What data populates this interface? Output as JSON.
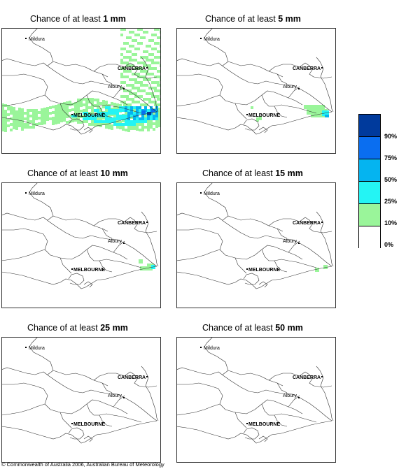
{
  "panels": [
    {
      "title_prefix": "Chance of at least ",
      "threshold": "1 mm"
    },
    {
      "title_prefix": "Chance of at least ",
      "threshold": "5 mm"
    },
    {
      "title_prefix": "Chance of at least ",
      "threshold": "10 mm"
    },
    {
      "title_prefix": "Chance of at least ",
      "threshold": "15 mm"
    },
    {
      "title_prefix": "Chance of at least ",
      "threshold": "25 mm"
    },
    {
      "title_prefix": "Chance of at least ",
      "threshold": "50 mm"
    }
  ],
  "places": {
    "mildura": "Mildura",
    "canberra": "CANBERRA",
    "albury": "Albury",
    "melbourne": "MELBOURNE"
  },
  "legend": {
    "labels": [
      "90%",
      "75%",
      "50%",
      "25%",
      "10%",
      "0%"
    ],
    "colors": [
      "#003a9c",
      "#0a6ef0",
      "#05b4f0",
      "#24f4f4",
      "#9af59a",
      "#ffffff"
    ]
  },
  "copyright": "© Commonwealth of Australia 2006, Australian Bureau of Meteorology"
}
